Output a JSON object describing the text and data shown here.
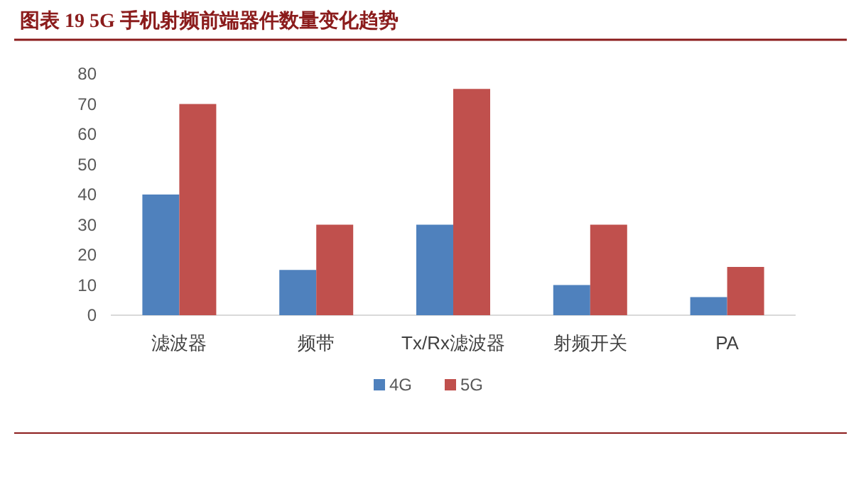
{
  "chart_data": {
    "type": "bar",
    "title": "图表 19   5G 手机射频前端器件数量变化趋势",
    "categories": [
      "滤波器",
      "频带",
      "Tx/Rx滤波器",
      "射频开关",
      "PA"
    ],
    "series": [
      {
        "name": "4G",
        "color": "#4f81bd",
        "values": [
          40,
          15,
          30,
          10,
          6
        ]
      },
      {
        "name": "5G",
        "color": "#c0504d",
        "values": [
          70,
          30,
          75,
          30,
          16
        ]
      }
    ],
    "ylim": [
      0,
      80
    ],
    "yticks": [
      0,
      10,
      20,
      30,
      40,
      50,
      60,
      70,
      80
    ],
    "grid": false,
    "legend": "bottom"
  }
}
